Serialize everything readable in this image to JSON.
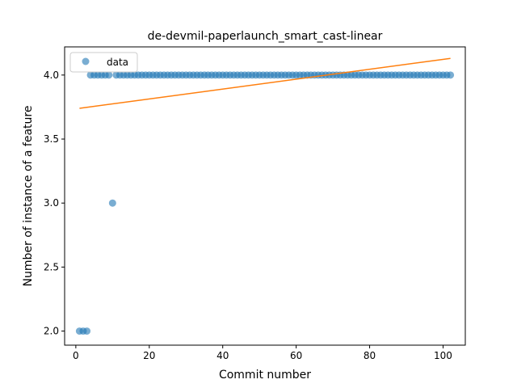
{
  "chart_data": {
    "type": "scatter",
    "title": "de-devmil-paperlaunch_smart_cast-linear",
    "xlabel": "Commit number",
    "ylabel": "Number of instance of a feature",
    "xlim": [
      -3.05,
      106.05
    ],
    "ylim": [
      1.89,
      4.22
    ],
    "xticks": [
      0,
      20,
      40,
      60,
      80,
      100
    ],
    "yticks": [
      2.0,
      2.5,
      3.0,
      3.5,
      4.0
    ],
    "ytick_labels": [
      "2.0",
      "2.5",
      "3.0",
      "3.5",
      "4.0"
    ],
    "grid": false,
    "legend": {
      "placement": "top-left",
      "entries": [
        "data"
      ]
    },
    "series": [
      {
        "name": "data",
        "kind": "scatter",
        "color": "#1f77b4",
        "alpha": 0.6,
        "x": [
          1,
          2,
          3,
          4,
          5,
          6,
          7,
          8,
          9,
          10,
          11,
          12,
          13,
          14,
          15,
          16,
          17,
          18,
          19,
          20,
          21,
          22,
          23,
          24,
          25,
          26,
          27,
          28,
          29,
          30,
          31,
          32,
          33,
          34,
          35,
          36,
          37,
          38,
          39,
          40,
          41,
          42,
          43,
          44,
          45,
          46,
          47,
          48,
          49,
          50,
          51,
          52,
          53,
          54,
          55,
          56,
          57,
          58,
          59,
          60,
          61,
          62,
          63,
          64,
          65,
          66,
          67,
          68,
          69,
          70,
          71,
          72,
          73,
          74,
          75,
          76,
          77,
          78,
          79,
          80,
          81,
          82,
          83,
          84,
          85,
          86,
          87,
          88,
          89,
          90,
          91,
          92,
          93,
          94,
          95,
          96,
          97,
          98,
          99,
          100,
          101,
          102
        ],
        "y": [
          2,
          2,
          2,
          4,
          4,
          4,
          4,
          4,
          4,
          3,
          4,
          4,
          4,
          4,
          4,
          4,
          4,
          4,
          4,
          4,
          4,
          4,
          4,
          4,
          4,
          4,
          4,
          4,
          4,
          4,
          4,
          4,
          4,
          4,
          4,
          4,
          4,
          4,
          4,
          4,
          4,
          4,
          4,
          4,
          4,
          4,
          4,
          4,
          4,
          4,
          4,
          4,
          4,
          4,
          4,
          4,
          4,
          4,
          4,
          4,
          4,
          4,
          4,
          4,
          4,
          4,
          4,
          4,
          4,
          4,
          4,
          4,
          4,
          4,
          4,
          4,
          4,
          4,
          4,
          4,
          4,
          4,
          4,
          4,
          4,
          4,
          4,
          4,
          4,
          4,
          4,
          4,
          4,
          4,
          4,
          4,
          4,
          4,
          4,
          4,
          4,
          4
        ]
      },
      {
        "kind": "line",
        "color": "#ff7f0e",
        "x": [
          1,
          102
        ],
        "y": [
          3.74,
          4.13
        ]
      }
    ]
  }
}
